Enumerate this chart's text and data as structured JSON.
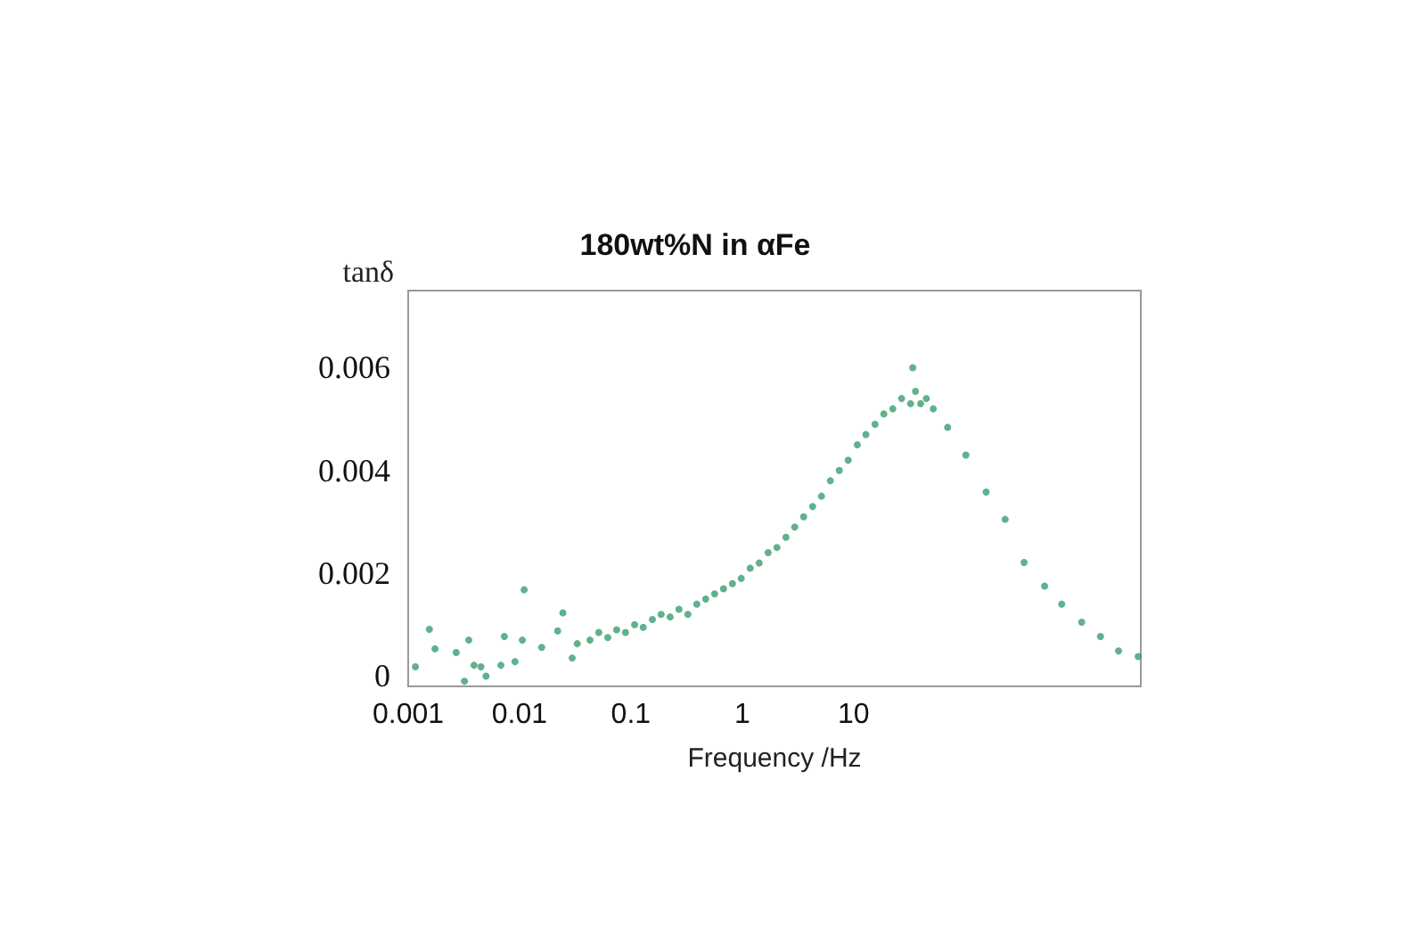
{
  "chart_data": {
    "type": "scatter",
    "title": "180wt%N in αFe",
    "xlabel": "Frequency /Hz",
    "ylabel": "tanδ",
    "log": "x",
    "grid": false,
    "marker": "circle",
    "xlim": [
      0.001,
      3800
    ],
    "xticks": [
      0.001,
      0.01,
      0.1,
      1,
      10
    ],
    "ylim": [
      -0.0002,
      0.0075
    ],
    "yticks": [
      0,
      0.002,
      0.004,
      0.006
    ],
    "series": [
      {
        "color": "#3a9e6e",
        "x": [
          0.00116,
          0.00155,
          0.00174,
          0.0027,
          0.0035,
          0.0039,
          0.0032,
          0.005,
          0.0045,
          0.0073,
          0.0106,
          0.0068,
          0.0091,
          0.011,
          0.0158,
          0.022,
          0.0245,
          0.0297,
          0.033,
          0.0429,
          0.0515,
          0.062,
          0.0745,
          0.0895,
          0.108,
          0.129,
          0.156,
          0.187,
          0.225,
          0.27,
          0.325,
          0.391,
          0.47,
          0.565,
          0.679,
          0.817,
          0.98,
          1.18,
          1.42,
          1.71,
          2.05,
          2.47,
          2.96,
          3.56,
          4.29,
          5.15,
          6.19,
          7.45,
          8.95,
          10.8,
          12.9,
          15.6,
          18.7,
          22.5,
          27,
          32.5,
          34,
          36,
          40,
          45,
          52,
          70,
          102,
          155,
          230,
          340,
          520,
          740,
          1120,
          1650,
          2400,
          3600
        ],
        "values": [
          0.00018,
          0.00091,
          0.00053,
          0.00046,
          0.0007,
          0.00021,
          -0.0001,
          0.0,
          0.00018,
          0.00077,
          0.0007,
          0.00021,
          0.00028,
          0.00168,
          0.00056,
          0.00088,
          0.00123,
          0.00035,
          0.00063,
          0.0007,
          0.00085,
          0.00075,
          0.0009,
          0.00085,
          0.001,
          0.00095,
          0.0011,
          0.0012,
          0.00115,
          0.0013,
          0.0012,
          0.0014,
          0.0015,
          0.0016,
          0.0017,
          0.0018,
          0.0019,
          0.0021,
          0.0022,
          0.0024,
          0.0025,
          0.0027,
          0.0029,
          0.0031,
          0.0033,
          0.0035,
          0.0038,
          0.004,
          0.0042,
          0.0045,
          0.0047,
          0.0049,
          0.0051,
          0.0052,
          0.0054,
          0.0053,
          0.006,
          0.00554,
          0.0053,
          0.0054,
          0.0052,
          0.00484,
          0.0043,
          0.00358,
          0.00305,
          0.00221,
          0.00175,
          0.0014,
          0.00105,
          0.00077,
          0.00049,
          0.00038
        ]
      }
    ]
  }
}
